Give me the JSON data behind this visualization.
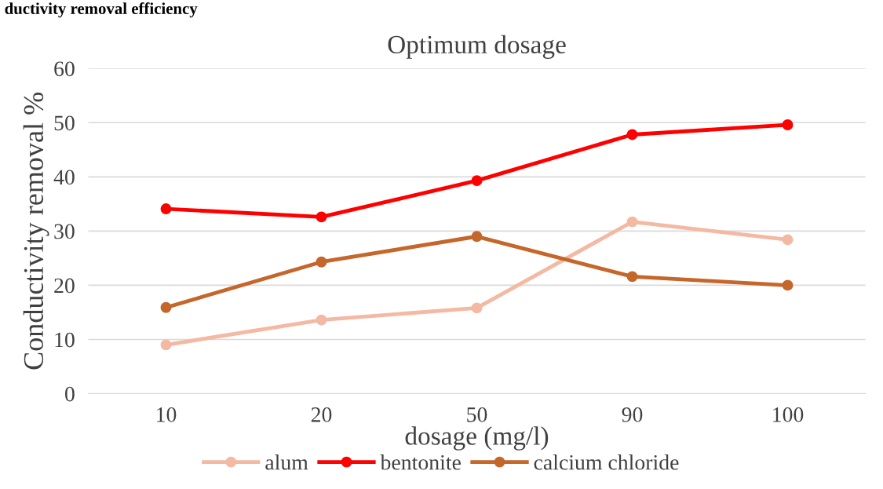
{
  "chart_data": {
    "type": "line",
    "title": "Optimum dosage",
    "xlabel": "dosage (mg/l)",
    "ylabel": "Conductivity removal %",
    "annotations": [
      "ductivity removal efficiency"
    ],
    "categories": [
      "10",
      "20",
      "50",
      "90",
      "100"
    ],
    "series": [
      {
        "name": "alum",
        "color": "#f4b9a2",
        "values": [
          9.0,
          13.6,
          15.8,
          31.7,
          28.4
        ]
      },
      {
        "name": "bentonite",
        "color": "#ff0000",
        "values": [
          34.1,
          32.6,
          39.3,
          47.8,
          49.6
        ]
      },
      {
        "name": "calcium chloride",
        "color": "#c5662a",
        "values": [
          15.9,
          24.3,
          29.0,
          21.6,
          20.0
        ]
      }
    ],
    "ylim": [
      0,
      60
    ],
    "yticks": [
      0,
      10,
      20,
      30,
      40,
      50,
      60
    ],
    "grid": "y",
    "legend": "bottom",
    "marker": "circle",
    "line_style": "solid"
  }
}
